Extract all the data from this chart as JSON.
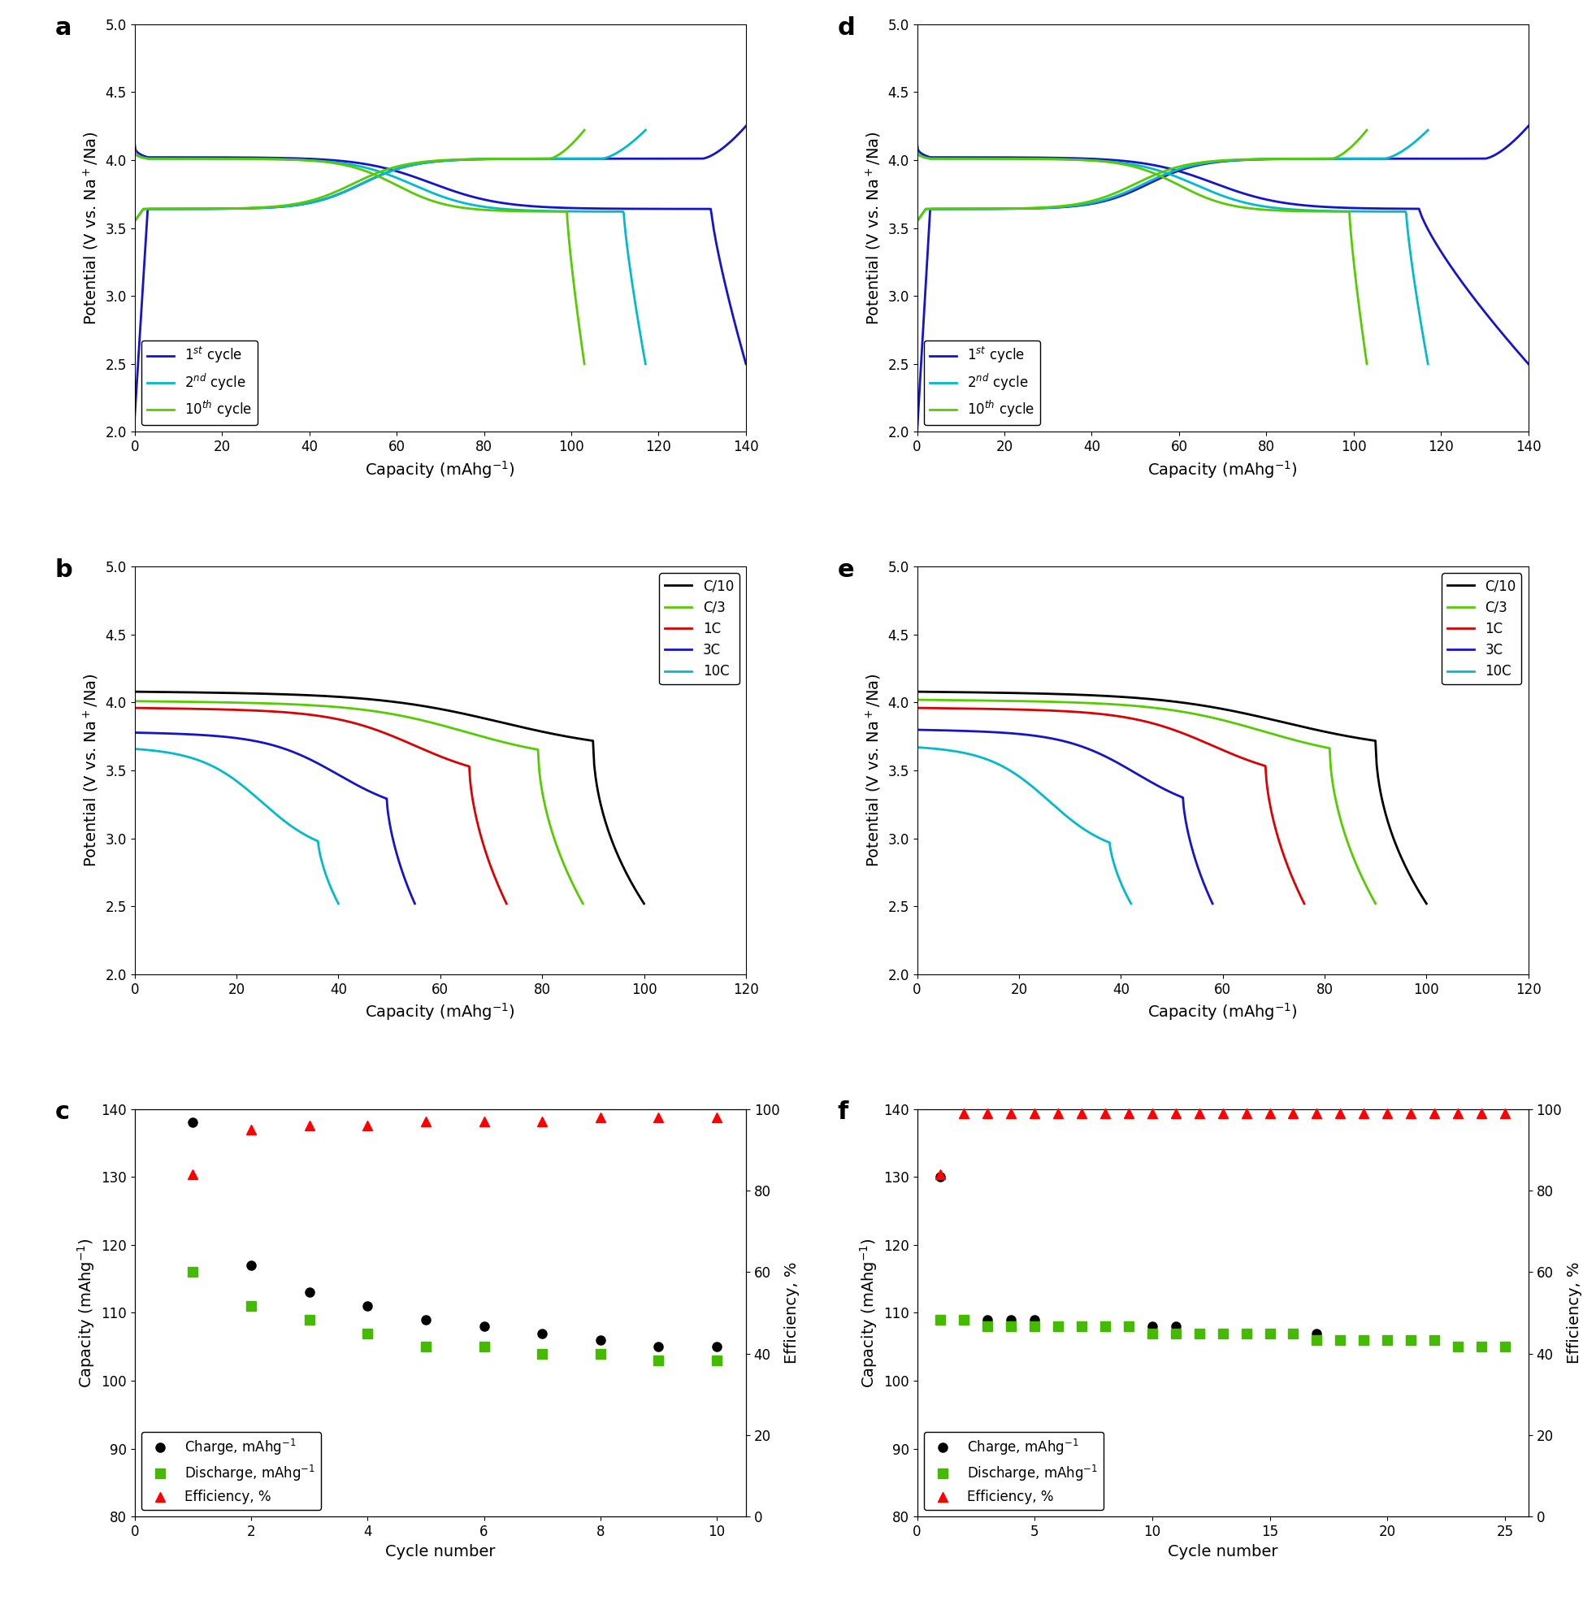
{
  "panel_labels": [
    "a",
    "b",
    "c",
    "d",
    "e",
    "f"
  ],
  "panel_label_fontsize": 22,
  "panel_label_fontweight": "bold",
  "ylabel_potential": "Potential (V vs. Na$^+$/Na)",
  "xlabel_capacity": "Capacity (mAhg$^{-1}$)",
  "xlabel_cycle": "Cycle number",
  "ylabel_capacity": "Capacity (mAhg$^{-1}$)",
  "ylabel_efficiency": "Efficiency, %",
  "axis_fontsize": 14,
  "tick_fontsize": 12,
  "legend_fontsize": 12,
  "linewidth": 2.0,
  "colors_cycles": {
    "1st": "#1414CC",
    "2nd": "#00BBCC",
    "10th": "#55CC00"
  },
  "colors_rates": {
    "C10": "#000000",
    "C3": "#55CC00",
    "1C": "#DD0000",
    "3C": "#1414CC",
    "10C": "#00BBCC"
  },
  "cycle_legend": [
    {
      "label": "1$^{st}$ cycle",
      "color": "#1414CC"
    },
    {
      "label": "2$^{nd}$ cycle",
      "color": "#00BBCC"
    },
    {
      "label": "10$^{th}$ cycle",
      "color": "#55CC00"
    }
  ],
  "rate_legend": [
    {
      "label": "C/10",
      "color": "#000000"
    },
    {
      "label": "C/3",
      "color": "#55CC00"
    },
    {
      "label": "1C",
      "color": "#DD0000"
    },
    {
      "label": "3C",
      "color": "#1414CC"
    },
    {
      "label": "10C",
      "color": "#00BBCC"
    }
  ],
  "cycling_c": {
    "cycles": [
      1,
      2,
      3,
      4,
      5,
      6,
      7,
      8,
      9,
      10
    ],
    "charge": [
      138,
      117,
      113,
      111,
      109,
      108,
      107,
      106,
      105,
      105
    ],
    "discharge": [
      116,
      111,
      109,
      107,
      105,
      105,
      104,
      104,
      103,
      103
    ],
    "eff_raw": [
      84,
      95,
      96,
      96,
      97,
      97,
      97,
      98,
      98,
      98
    ]
  },
  "cycling_f": {
    "cycles": [
      1,
      2,
      3,
      4,
      5,
      6,
      7,
      8,
      9,
      10,
      11,
      12,
      13,
      14,
      15,
      16,
      17,
      18,
      19,
      20,
      21,
      22,
      23,
      24,
      25
    ],
    "charge": [
      130,
      109,
      109,
      109,
      109,
      108,
      108,
      108,
      108,
      108,
      108,
      107,
      107,
      107,
      107,
      107,
      107,
      106,
      106,
      106,
      106,
      106,
      105,
      105,
      105
    ],
    "discharge": [
      109,
      109,
      108,
      108,
      108,
      108,
      108,
      108,
      108,
      107,
      107,
      107,
      107,
      107,
      107,
      107,
      106,
      106,
      106,
      106,
      106,
      106,
      105,
      105,
      105
    ],
    "eff_raw": [
      84,
      99,
      99,
      99,
      99,
      99,
      99,
      99,
      99,
      99,
      99,
      99,
      99,
      99,
      99,
      99,
      99,
      99,
      99,
      99,
      99,
      99,
      99,
      99,
      99
    ]
  }
}
